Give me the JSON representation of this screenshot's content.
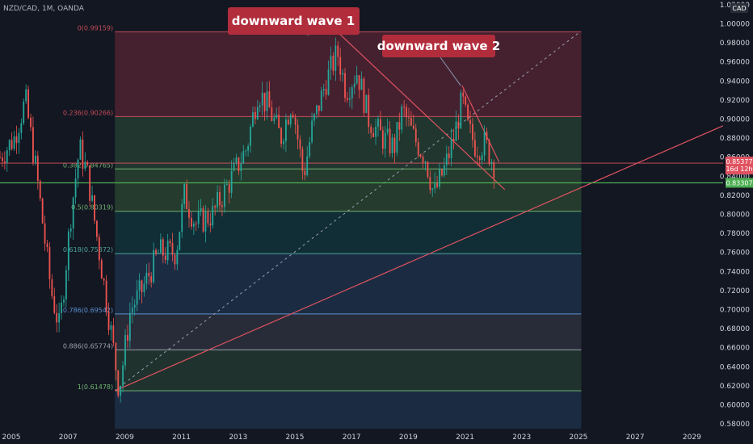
{
  "header": {
    "symbol": "NZD/CAD, 1M, OANDA",
    "currency": "CAD"
  },
  "chart_data": {
    "type": "candlestick",
    "x_range": [
      2005.0,
      2030.5
    ],
    "y_range": [
      0.575,
      1.025
    ],
    "x_ticks": [
      "2005",
      "2007",
      "2009",
      "2011",
      "2013",
      "2015",
      "2017",
      "2019",
      "2021",
      "2023",
      "2025",
      "2027",
      "2029"
    ],
    "y_ticks": [
      "1.02000",
      "1.00000",
      "0.98000",
      "0.96000",
      "0.94000",
      "0.92000",
      "0.90000",
      "0.88000",
      "0.86000",
      "0.84000",
      "0.82000",
      "0.80000",
      "0.78000",
      "0.76000",
      "0.74000",
      "0.72000",
      "0.70000",
      "0.68000",
      "0.66000",
      "0.64000",
      "0.62000",
      "0.60000",
      "0.58000"
    ],
    "price_anchors": [
      [
        2005.0,
        0.86
      ],
      [
        2005.5,
        0.88
      ],
      [
        2005.9,
        0.92
      ],
      [
        2006.3,
        0.84
      ],
      [
        2006.8,
        0.72
      ],
      [
        2007.1,
        0.68
      ],
      [
        2007.5,
        0.8
      ],
      [
        2007.8,
        0.87
      ],
      [
        2008.1,
        0.84
      ],
      [
        2008.5,
        0.76
      ],
      [
        2008.9,
        0.68
      ],
      [
        2009.2,
        0.615
      ],
      [
        2009.6,
        0.7
      ],
      [
        2010.0,
        0.72
      ],
      [
        2010.6,
        0.76
      ],
      [
        2011.2,
        0.76
      ],
      [
        2011.5,
        0.82
      ],
      [
        2011.9,
        0.79
      ],
      [
        2012.5,
        0.8
      ],
      [
        2013.2,
        0.84
      ],
      [
        2013.7,
        0.87
      ],
      [
        2014.1,
        0.93
      ],
      [
        2014.5,
        0.91
      ],
      [
        2014.9,
        0.88
      ],
      [
        2015.3,
        0.92
      ],
      [
        2015.7,
        0.84
      ],
      [
        2016.0,
        0.89
      ],
      [
        2016.5,
        0.94
      ],
      [
        2016.9,
        0.97
      ],
      [
        2017.2,
        0.93
      ],
      [
        2017.6,
        0.95
      ],
      [
        2018.0,
        0.9
      ],
      [
        2018.5,
        0.88
      ],
      [
        2018.9,
        0.87
      ],
      [
        2019.2,
        0.91
      ],
      [
        2019.6,
        0.88
      ],
      [
        2020.0,
        0.86
      ],
      [
        2020.3,
        0.82
      ],
      [
        2020.7,
        0.85
      ],
      [
        2021.0,
        0.88
      ],
      [
        2021.3,
        0.92
      ],
      [
        2021.5,
        0.89
      ],
      [
        2021.8,
        0.87
      ],
      [
        2022.1,
        0.875
      ],
      [
        2022.4,
        0.853
      ]
    ],
    "fib_levels": [
      {
        "ratio": "0",
        "price": 0.99159,
        "label": "0(0.99159)"
      },
      {
        "ratio": "0.236",
        "price": 0.90266,
        "label": "0.236(0.90266)"
      },
      {
        "ratio": "0.382",
        "price": 0.84765,
        "label": "0.382(0.84765)"
      },
      {
        "ratio": "0.5",
        "price": 0.80319,
        "label": "0.5(0.80319)"
      },
      {
        "ratio": "0.618",
        "price": 0.75872,
        "label": "0.618(0.75872)"
      },
      {
        "ratio": "0.786",
        "price": 0.69542,
        "label": "0.786(0.69542)"
      },
      {
        "ratio": "0.886",
        "price": 0.65774,
        "label": "0.886(0.65774)"
      },
      {
        "ratio": "1",
        "price": 0.61478,
        "label": "1(0.61478)"
      }
    ],
    "fib_x_range": [
      2009.05,
      2025.5
    ],
    "fib_bands": [
      {
        "from": 0.99159,
        "to": 0.90266,
        "color": "#b2374a"
      },
      {
        "from": 0.90266,
        "to": 0.84765,
        "color": "#3f7a4a"
      },
      {
        "from": 0.84765,
        "to": 0.80319,
        "color": "#4c8a46"
      },
      {
        "from": 0.80319,
        "to": 0.75872,
        "color": "#0f5e60"
      },
      {
        "from": 0.75872,
        "to": 0.69542,
        "color": "#2e5b86"
      },
      {
        "from": 0.69542,
        "to": 0.65774,
        "color": "#565a68"
      },
      {
        "from": 0.65774,
        "to": 0.61478,
        "color": "#3c6e48"
      },
      {
        "from": 0.61478,
        "to": 0.575,
        "color": "#2e5b86"
      }
    ],
    "current_price": "0.85377",
    "current_sublabel": "16d 12h",
    "current_price_value": 0.85377,
    "horizontal_line_price": "0.83307",
    "horizontal_line_value": 0.83307,
    "annotations": [
      {
        "text": "downward wave 1"
      },
      {
        "text": "downward wave 2"
      }
    ],
    "colors": {
      "up": "#26a69a",
      "down": "#ef5350",
      "background": "#131722",
      "callout": "#b12d3c",
      "green_line": "#4caf50",
      "red_line": "#e05260"
    }
  }
}
